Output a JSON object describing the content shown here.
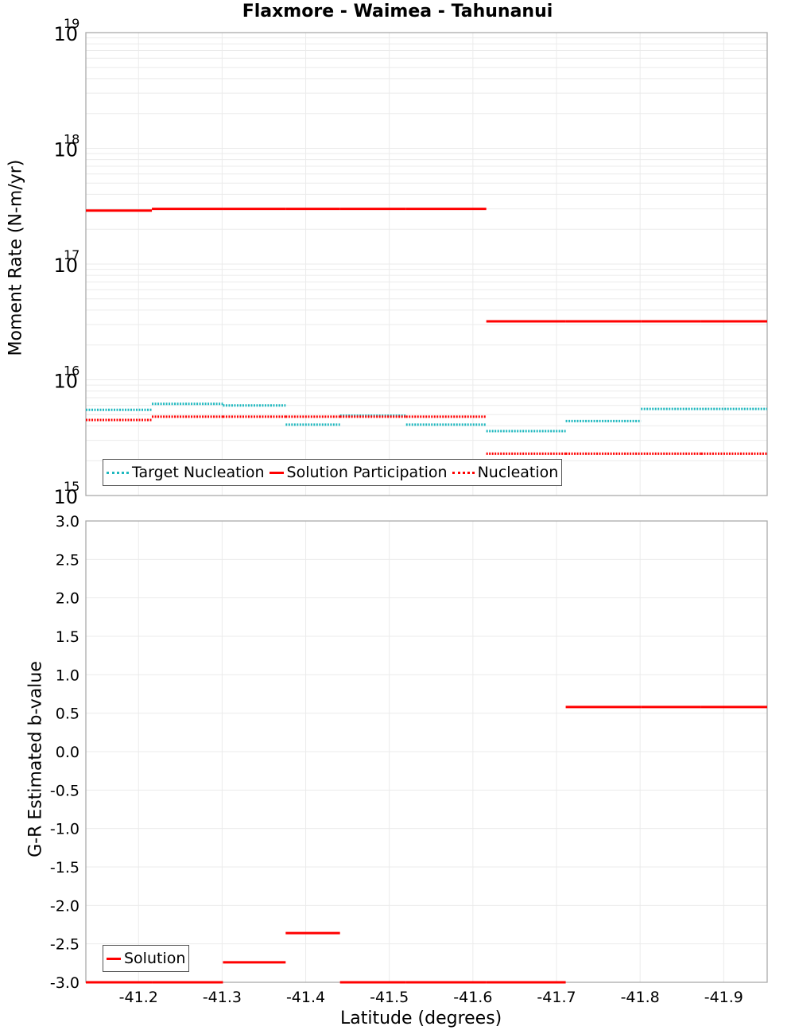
{
  "title": "Flaxmore - Waimea - Tahunanui",
  "colors": {
    "target": "#1fb8bf",
    "solution": "#ff0000",
    "grid": "#ebebeb",
    "axis": "#aaaaaa"
  },
  "top": {
    "ylabel": "Moment Rate (N-m/yr)",
    "legend": [
      "Target Nucleation",
      "Solution Participation",
      "Nucleation"
    ],
    "yticks": [
      "10",
      "10",
      "10",
      "10",
      "10"
    ],
    "yexp": [
      "19",
      "18",
      "17",
      "16",
      "15"
    ]
  },
  "bottom": {
    "ylabel": "G-R Estimated b-value",
    "xlabel": "Latitude (degrees)",
    "legend": [
      "Solution"
    ],
    "yticks": [
      "3.0",
      "2.5",
      "2.0",
      "1.5",
      "1.0",
      "0.5",
      "0.0",
      "-0.5",
      "-1.0",
      "-1.5",
      "-2.0",
      "-2.5",
      "-3.0"
    ],
    "xticks": [
      "-41.2",
      "-41.3",
      "-41.4",
      "-41.5",
      "-41.6",
      "-41.7",
      "-41.8",
      "-41.9"
    ]
  },
  "chart_data": [
    {
      "type": "line",
      "title": "Flaxmore - Waimea - Tahunanui",
      "xlabel": "Latitude (degrees)",
      "ylabel": "Moment Rate (N-m/yr)",
      "yscale": "log",
      "ylim": [
        1000000000000000.0,
        1e+19
      ],
      "xlim": [
        -41.137,
        -41.952
      ],
      "grid": true,
      "legend_position": "lower-left",
      "segment_edges": [
        -41.137,
        -41.216,
        -41.301,
        -41.376,
        -41.441,
        -41.52,
        -41.616,
        -41.711,
        -41.801,
        -41.873,
        -41.952
      ],
      "series": [
        {
          "name": "Target Nucleation",
          "style": "dotted",
          "color": "#1fb8bf",
          "values": [
            5500000000000000.0,
            6200000000000000.0,
            6000000000000000.0,
            4100000000000000.0,
            4900000000000000.0,
            4100000000000000.0,
            3600000000000000.0,
            4400000000000000.0,
            5600000000000000.0,
            null
          ]
        },
        {
          "name": "Solution Participation",
          "style": "solid",
          "color": "#ff0000",
          "values": [
            2.9e+17,
            3e+17,
            3e+17,
            3e+17,
            3e+17,
            3e+17,
            3.2e+16,
            3.2e+16,
            3.2e+16,
            null
          ]
        },
        {
          "name": "Nucleation",
          "style": "dotted",
          "color": "#ff0000",
          "values": [
            4500000000000000.0,
            4800000000000000.0,
            4800000000000000.0,
            4800000000000000.0,
            4800000000000000.0,
            4800000000000000.0,
            2300000000000000.0,
            2300000000000000.0,
            2300000000000000.0,
            null
          ]
        }
      ]
    },
    {
      "type": "line",
      "xlabel": "Latitude (degrees)",
      "ylabel": "G-R Estimated b-value",
      "ylim": [
        -3.0,
        3.0
      ],
      "xlim": [
        -41.137,
        -41.952
      ],
      "grid": true,
      "legend_position": "lower-left",
      "xticks": [
        -41.2,
        -41.3,
        -41.4,
        -41.5,
        -41.6,
        -41.7,
        -41.8,
        -41.9
      ],
      "segment_edges": [
        -41.137,
        -41.216,
        -41.301,
        -41.376,
        -41.441,
        -41.52,
        -41.616,
        -41.711,
        -41.801,
        -41.873,
        -41.952
      ],
      "series": [
        {
          "name": "Solution",
          "style": "solid",
          "color": "#ff0000",
          "values": [
            -3.0,
            -3.0,
            -2.74,
            -2.36,
            -3.0,
            -3.0,
            -3.0,
            0.58,
            0.58,
            0.58
          ]
        }
      ]
    }
  ]
}
